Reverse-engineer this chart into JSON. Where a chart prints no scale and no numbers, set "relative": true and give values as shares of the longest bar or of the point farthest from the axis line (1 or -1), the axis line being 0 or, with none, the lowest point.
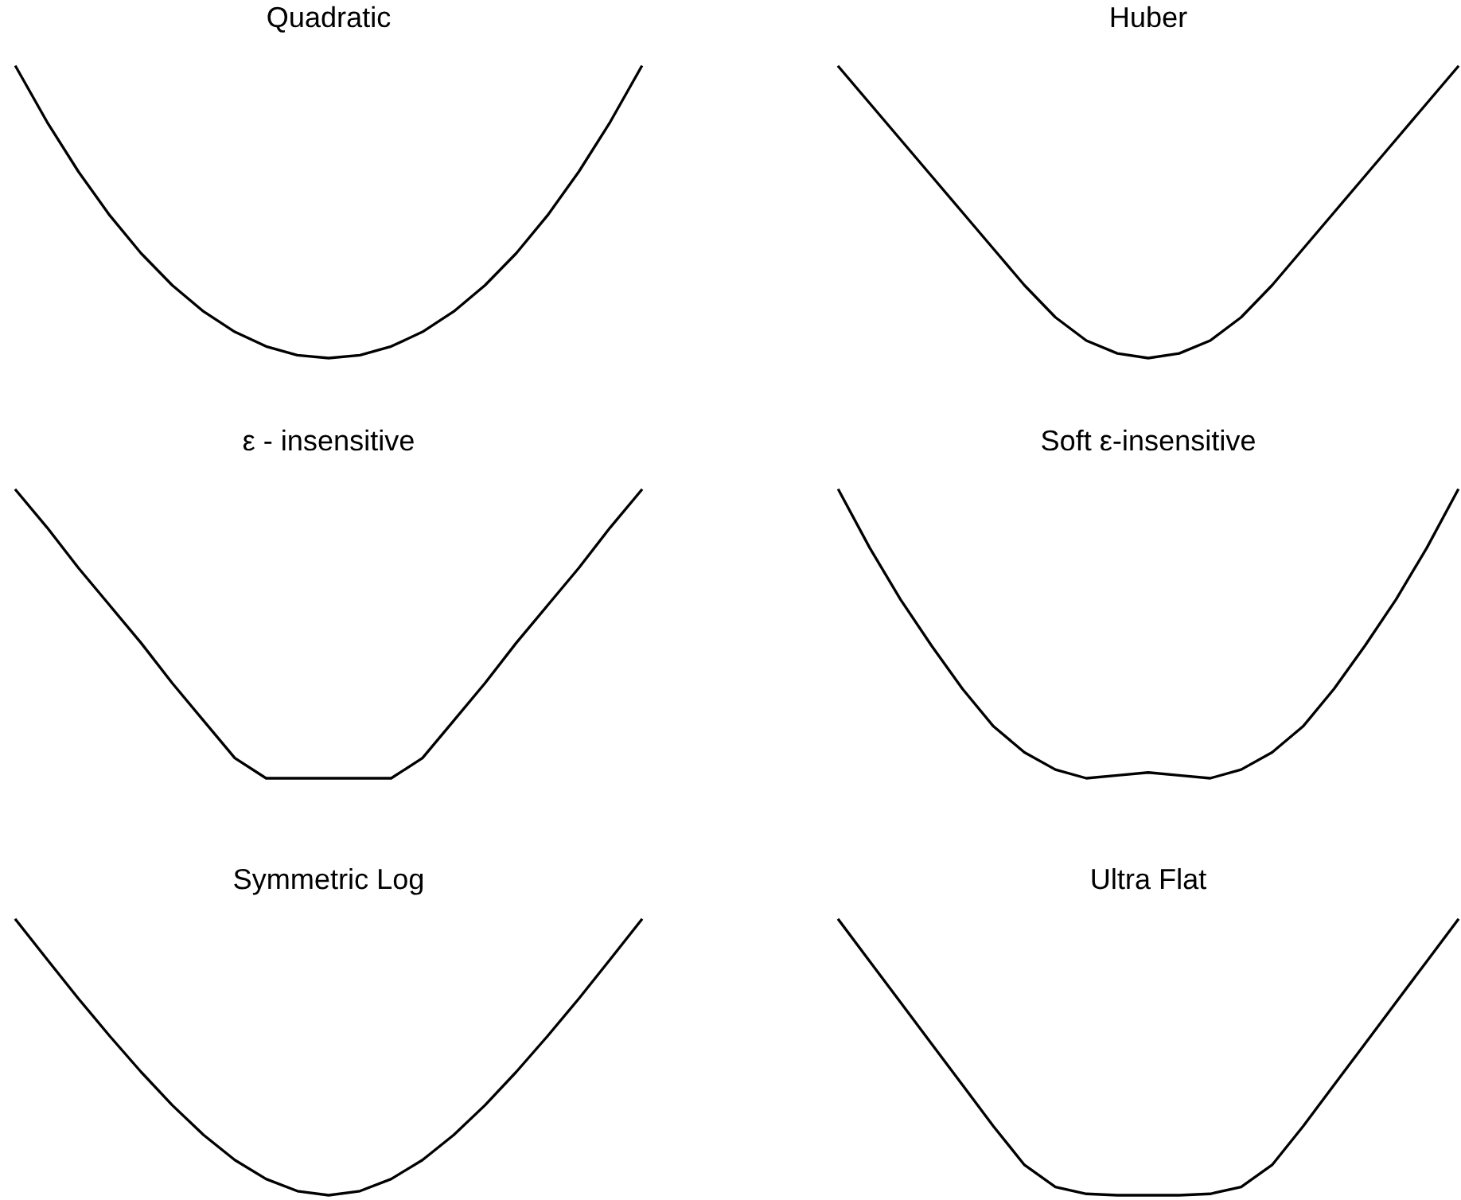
{
  "chart_data": [
    {
      "type": "line",
      "title": "Quadratic",
      "relative": true,
      "categories": [
        null,
        null,
        null,
        null,
        null,
        null,
        null,
        null,
        null,
        null,
        null,
        null,
        null,
        null,
        null,
        null,
        null,
        null,
        null,
        null,
        null
      ],
      "series": [
        {
          "color": "#000000",
          "values": [
            1,
            0.81,
            0.64,
            0.49,
            0.36,
            0.25,
            0.16,
            0.09,
            0.04,
            0.01,
            0,
            0.01,
            0.04,
            0.09,
            0.16,
            0.25,
            0.36,
            0.49,
            0.64,
            0.81,
            1
          ]
        }
      ]
    },
    {
      "type": "line",
      "title": "Huber",
      "relative": true,
      "categories": [
        null,
        null,
        null,
        null,
        null,
        null,
        null,
        null,
        null,
        null,
        null,
        null,
        null,
        null,
        null,
        null,
        null,
        null,
        null,
        null,
        null
      ],
      "series": [
        {
          "color": "#000000",
          "values": [
            1,
            0.875,
            0.75,
            0.625,
            0.5,
            0.375,
            0.25,
            0.14,
            0.06,
            0.016,
            0,
            0.016,
            0.06,
            0.14,
            0.25,
            0.375,
            0.5,
            0.625,
            0.75,
            0.875,
            1
          ]
        }
      ]
    },
    {
      "type": "line",
      "title": "ε - insensitive",
      "relative": true,
      "categories": [
        null,
        null,
        null,
        null,
        null,
        null,
        null,
        null,
        null,
        null,
        null,
        null,
        null,
        null,
        null,
        null,
        null,
        null,
        null,
        null,
        null
      ],
      "series": [
        {
          "color": "#000000",
          "values": [
            1,
            0.87,
            0.73,
            0.6,
            0.47,
            0.33,
            0.2,
            0.07,
            0,
            0,
            0,
            0,
            0,
            0.07,
            0.2,
            0.33,
            0.47,
            0.6,
            0.73,
            0.87,
            1
          ]
        }
      ]
    },
    {
      "type": "line",
      "title": "Soft ε-insensitive",
      "relative": true,
      "categories": [
        null,
        null,
        null,
        null,
        null,
        null,
        null,
        null,
        null,
        null,
        null,
        null,
        null,
        null,
        null,
        null,
        null,
        null,
        null,
        null,
        null
      ],
      "series": [
        {
          "color": "#000000",
          "values": [
            1,
            0.8,
            0.62,
            0.46,
            0.31,
            0.18,
            0.09,
            0.03,
            0,
            0.01,
            0.02,
            0.01,
            0,
            0.03,
            0.09,
            0.18,
            0.31,
            0.46,
            0.62,
            0.8,
            1
          ]
        }
      ]
    },
    {
      "type": "line",
      "title": "Symmetric Log",
      "relative": true,
      "categories": [
        null,
        null,
        null,
        null,
        null,
        null,
        null,
        null,
        null,
        null,
        null,
        null,
        null,
        null,
        null,
        null,
        null,
        null,
        null,
        null,
        null
      ],
      "series": [
        {
          "color": "#000000",
          "values": [
            1,
            0.856,
            0.714,
            0.578,
            0.448,
            0.327,
            0.219,
            0.128,
            0.059,
            0.015,
            0,
            0.015,
            0.059,
            0.128,
            0.219,
            0.327,
            0.448,
            0.578,
            0.714,
            0.856,
            1
          ]
        }
      ]
    },
    {
      "type": "line",
      "title": "Ultra Flat",
      "relative": true,
      "categories": [
        null,
        null,
        null,
        null,
        null,
        null,
        null,
        null,
        null,
        null,
        null,
        null,
        null,
        null,
        null,
        null,
        null,
        null,
        null,
        null,
        null
      ],
      "series": [
        {
          "color": "#000000",
          "values": [
            1,
            0.85,
            0.7,
            0.55,
            0.4,
            0.25,
            0.11,
            0.03,
            0.005,
            0,
            0,
            0,
            0.005,
            0.03,
            0.11,
            0.25,
            0.4,
            0.55,
            0.7,
            0.85,
            1
          ]
        }
      ]
    }
  ]
}
